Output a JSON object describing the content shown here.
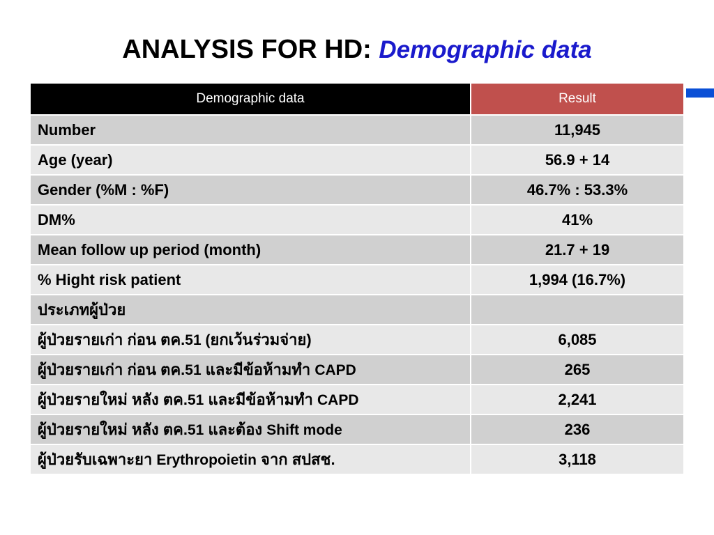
{
  "title": {
    "main": "ANALYSIS FOR HD",
    "separator": ":",
    "subtitle": "Demographic data"
  },
  "table": {
    "headers": [
      "Demographic data",
      "Result"
    ],
    "rows": [
      {
        "label": "Number",
        "value": "11,945"
      },
      {
        "label": "Age (year)",
        "value": "56.9 + 14"
      },
      {
        "label": "Gender (%M : %F)",
        "value": "46.7% : 53.3%"
      },
      {
        "label": "DM%",
        "value": "41%"
      },
      {
        "label": "Mean follow up period (month)",
        "value": "21.7 + 19"
      },
      {
        "label": "% Hight risk patient",
        "value": "1,994  (16.7%)"
      }
    ],
    "category": {
      "label": "ประเภทผู้ป่วย",
      "value": ""
    },
    "subrows": [
      {
        "pre": "ผู้ป่วยรายเก่า ก่อน ตค.",
        "num": "51",
        "mid": " (",
        "post": "ยกเว้นร่วมจ่าย)",
        "value": "6,085"
      },
      {
        "pre": "ผู้ป่วยรายเก่า ก่อน ตค.",
        "num": "51",
        "mid": " และมีข้อห้ามทำ ",
        "post": "CAPD",
        "value": "265"
      },
      {
        "pre": "ผู้ป่วยรายใหม่ หลัง ตค.",
        "num": "51",
        "mid": " และมีข้อห้ามทำ ",
        "post": "CAPD",
        "value": "2,241"
      },
      {
        "pre": "ผู้ป่วยรายใหม่ หลัง ตค.",
        "num": "51",
        "mid": " และต้อง ",
        "post": "Shift mode",
        "value": "236"
      },
      {
        "pre": "ผู้ป่วยรับเฉพาะยา ",
        "num": "Erythropoietin",
        "mid": " จาก สปสช.",
        "post": "",
        "value": "3,118"
      }
    ]
  },
  "colors": {
    "header_left": "#000000",
    "header_right": "#c0504d",
    "row_dark": "#d0d0d0",
    "row_light": "#e8e8e8",
    "accent": "#0a4fd6",
    "subtitle": "#1a1acc"
  }
}
